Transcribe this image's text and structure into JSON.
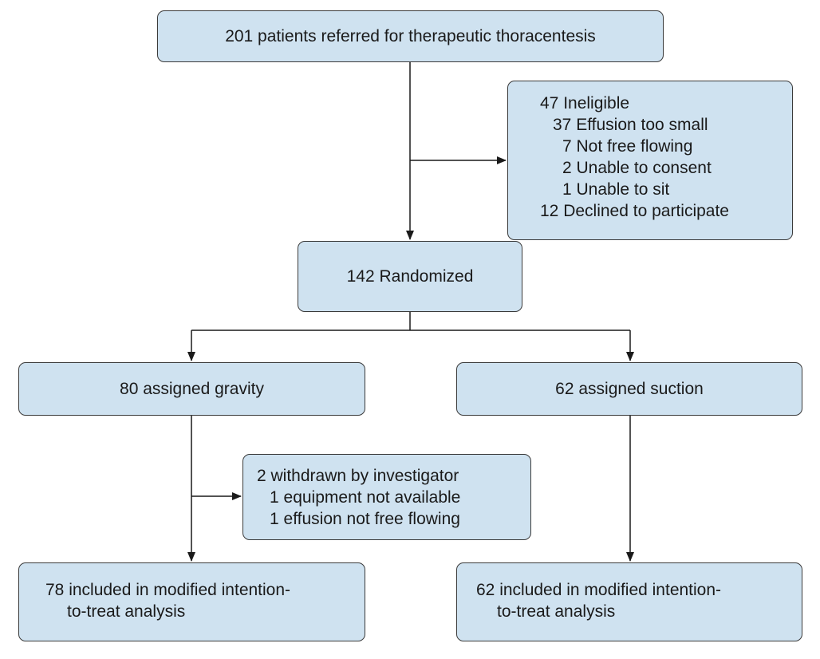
{
  "boxes": {
    "referred": "201 patients referred for therapeutic thoracentesis",
    "ineligible": {
      "lines": [
        "47 Ineligible",
        "37 Effusion too small",
        "7 Not free flowing",
        "2 Unable to consent",
        "1 Unable to sit",
        "12 Declined to participate"
      ]
    },
    "randomized": "142 Randomized",
    "gravity": "80 assigned gravity",
    "suction": "62 assigned suction",
    "withdrawn": {
      "lines": [
        "2 withdrawn by investigator",
        "1 equipment not available",
        "1 effusion not free flowing"
      ]
    },
    "gravity_analysis": {
      "lines": [
        "78 included in modified intention-",
        "to-treat analysis"
      ]
    },
    "suction_analysis": {
      "lines": [
        "62 included in modified intention-",
        "to-treat analysis"
      ]
    }
  },
  "colors": {
    "box_fill": "#cfe2f0",
    "box_border": "#3a3a3a",
    "connector": "#1a1a1a"
  }
}
